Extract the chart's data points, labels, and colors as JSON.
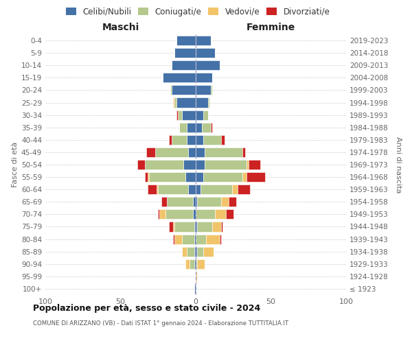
{
  "age_groups": [
    "100+",
    "95-99",
    "90-94",
    "85-89",
    "80-84",
    "75-79",
    "70-74",
    "65-69",
    "60-64",
    "55-59",
    "50-54",
    "45-49",
    "40-44",
    "35-39",
    "30-34",
    "25-29",
    "20-24",
    "15-19",
    "10-14",
    "5-9",
    "0-4"
  ],
  "birth_years": [
    "≤ 1923",
    "1924-1928",
    "1929-1933",
    "1934-1938",
    "1939-1943",
    "1944-1948",
    "1949-1953",
    "1954-1958",
    "1959-1963",
    "1964-1968",
    "1969-1973",
    "1974-1978",
    "1979-1983",
    "1984-1988",
    "1989-1993",
    "1994-1998",
    "1999-2003",
    "2004-2008",
    "2009-2013",
    "2014-2018",
    "2019-2023"
  ],
  "maschi": {
    "celibi": [
      1,
      0,
      1,
      1,
      1,
      1,
      2,
      2,
      5,
      7,
      8,
      5,
      6,
      6,
      9,
      13,
      16,
      22,
      16,
      14,
      13
    ],
    "coniugati": [
      0,
      0,
      3,
      5,
      8,
      13,
      18,
      17,
      20,
      24,
      26,
      22,
      10,
      5,
      3,
      1,
      1,
      0,
      0,
      0,
      0
    ],
    "vedovi": [
      0,
      0,
      3,
      3,
      5,
      1,
      4,
      0,
      1,
      1,
      0,
      0,
      0,
      0,
      0,
      1,
      0,
      0,
      0,
      0,
      0
    ],
    "divorziati": [
      0,
      0,
      0,
      0,
      1,
      3,
      1,
      4,
      6,
      2,
      5,
      6,
      2,
      0,
      1,
      0,
      0,
      0,
      0,
      0,
      0
    ]
  },
  "femmine": {
    "nubili": [
      0,
      0,
      0,
      1,
      0,
      1,
      0,
      1,
      3,
      5,
      6,
      6,
      5,
      4,
      5,
      8,
      10,
      11,
      16,
      13,
      10
    ],
    "coniugate": [
      0,
      0,
      1,
      4,
      7,
      10,
      13,
      16,
      21,
      26,
      28,
      25,
      12,
      6,
      3,
      1,
      1,
      0,
      0,
      0,
      0
    ],
    "vedove": [
      0,
      1,
      5,
      7,
      9,
      6,
      7,
      5,
      4,
      3,
      1,
      0,
      0,
      0,
      0,
      0,
      0,
      0,
      0,
      0,
      0
    ],
    "divorziate": [
      0,
      0,
      0,
      0,
      1,
      1,
      5,
      5,
      8,
      12,
      8,
      2,
      2,
      1,
      0,
      0,
      0,
      0,
      0,
      0,
      0
    ]
  },
  "colors": {
    "celibi": "#4472a8",
    "coniugati": "#b5c98e",
    "vedovi": "#f2c46a",
    "divorziati": "#cc2222"
  },
  "legend_labels": [
    "Celibi/Nubili",
    "Coniugati/e",
    "Vedovi/e",
    "Divorziati/e"
  ],
  "xlim": 100,
  "title": "Popolazione per età, sesso e stato civile - 2024",
  "subtitle": "COMUNE DI ARIZZANO (VB) - Dati ISTAT 1° gennaio 2024 - Elaborazione TUTTITALIA.IT",
  "ylabel_left": "Fasce di età",
  "ylabel_right": "Anni di nascita",
  "label_maschi": "Maschi",
  "label_femmine": "Femmine"
}
